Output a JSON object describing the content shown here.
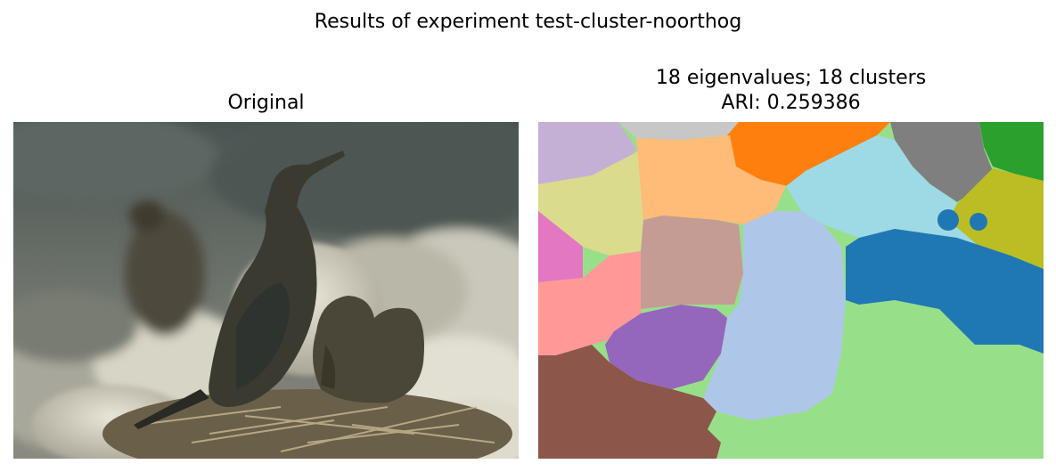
{
  "figure": {
    "suptitle": "Results of experiment test-cluster-noorthog"
  },
  "left_panel": {
    "title": "Original",
    "image_description": "Two dark cormorants standing on a nest of twigs among pale rocks; blurred bird in background"
  },
  "right_panel": {
    "title_line1": "18 eigenvalues; 18 clusters",
    "title_line2": "ARI: 0.259386",
    "segment_colors": [
      "#c5b0d5",
      "#c7c7c7",
      "#ff7f0e",
      "#7f7f7f",
      "#2ca02c",
      "#dbdb8d",
      "#ffbb78",
      "#9edae5",
      "#bcbd22",
      "#17becf",
      "#e377c2",
      "#c49c94",
      "#aec7e8",
      "#1f77b4",
      "#ff9896",
      "#9467bd",
      "#98df8a",
      "#8c564b"
    ]
  }
}
